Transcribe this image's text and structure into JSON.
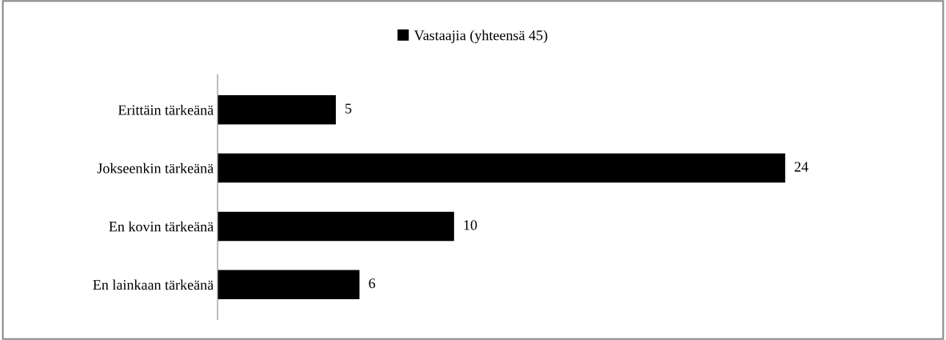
{
  "chart_data": {
    "type": "bar",
    "orientation": "horizontal",
    "categories": [
      "Erittäin tärkeänä",
      "Jokseenkin tärkeänä",
      "En kovin tärkeänä",
      "En lainkaan tärkeänä"
    ],
    "series": [
      {
        "name": "Vastaajia (yhteensä 45)",
        "color": "#000000",
        "values": [
          5,
          24,
          10,
          6
        ]
      }
    ],
    "data_labels": true,
    "legend": "top",
    "tick_labels": "y"
  }
}
